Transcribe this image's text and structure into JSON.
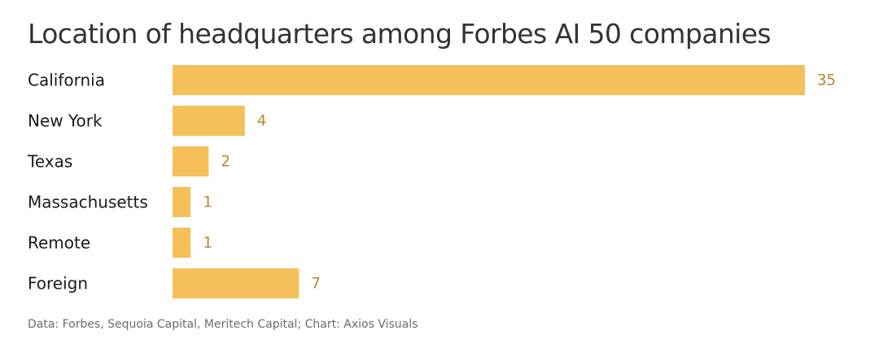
{
  "chart_data": {
    "type": "bar",
    "orientation": "horizontal",
    "title": "Location of headquarters among Forbes AI 50 companies",
    "source": "Data: Forbes, Sequoia Capital, Meritech Capital; Chart: Axios Visuals",
    "categories": [
      "California",
      "New York",
      "Texas",
      "Massachusetts",
      "Remote",
      "Foreign"
    ],
    "values": [
      35,
      4,
      2,
      1,
      1,
      7
    ],
    "xlim": [
      0,
      35
    ],
    "grid": false,
    "legend": "none",
    "colors": {
      "bar": "#F5C05A",
      "value_label": "#B58A2E",
      "title": "#333333",
      "category_label": "#1a1a1a",
      "source": "#6b6b6b"
    }
  }
}
